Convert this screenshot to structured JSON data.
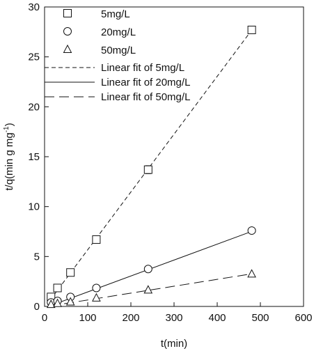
{
  "chart_data": {
    "type": "scatter",
    "xlabel": "t(min)",
    "ylabel_main": "t/q(min g mg",
    "ylabel_sup": "-1",
    "ylabel_close": ")",
    "xlim": [
      0,
      600
    ],
    "ylim": [
      0,
      30
    ],
    "x_ticks": [
      0,
      100,
      200,
      300,
      400,
      500,
      600
    ],
    "y_ticks": [
      0,
      5,
      10,
      15,
      20,
      25,
      30
    ],
    "x_tick_labels": [
      "0",
      "100",
      "200",
      "300",
      "400",
      "500",
      "600"
    ],
    "y_tick_labels": [
      "0",
      "5",
      "10",
      "15",
      "20",
      "25",
      "30"
    ],
    "grid": false,
    "legend_position": "top-left",
    "series": [
      {
        "name": "5mg/L",
        "marker": "square",
        "points": [
          [
            15,
            0.95
          ],
          [
            30,
            1.85
          ],
          [
            60,
            3.4
          ],
          [
            120,
            6.7
          ],
          [
            240,
            13.7
          ],
          [
            480,
            27.7
          ]
        ],
        "errors": [
          0.2,
          0.2,
          0.25,
          0.3,
          0.4,
          0.35
        ]
      },
      {
        "name": "20mg/L",
        "marker": "circle",
        "points": [
          [
            15,
            0.4
          ],
          [
            30,
            0.55
          ],
          [
            60,
            0.95
          ],
          [
            120,
            1.85
          ],
          [
            240,
            3.75
          ],
          [
            480,
            7.6
          ]
        ],
        "errors": [
          0,
          0,
          0,
          0,
          0,
          0
        ]
      },
      {
        "name": "50mg/L",
        "marker": "triangle",
        "points": [
          [
            15,
            0.2
          ],
          [
            30,
            0.3
          ],
          [
            60,
            0.45
          ],
          [
            120,
            0.85
          ],
          [
            240,
            1.65
          ],
          [
            480,
            3.25
          ]
        ],
        "errors": [
          0,
          0,
          0,
          0,
          0,
          0
        ]
      }
    ],
    "fits": [
      {
        "name": "Linear fit of 5mg/L",
        "style": "dash-short",
        "x": [
          12,
          482
        ],
        "y": [
          0.58,
          27.8
        ]
      },
      {
        "name": "Linear fit of 20mg/L",
        "style": "solid",
        "x": [
          12,
          482
        ],
        "y": [
          0.05,
          7.55
        ]
      },
      {
        "name": "Linear fit of 50mg/L",
        "style": "dash-long",
        "x": [
          12,
          482
        ],
        "y": [
          0.04,
          3.28
        ]
      }
    ]
  }
}
